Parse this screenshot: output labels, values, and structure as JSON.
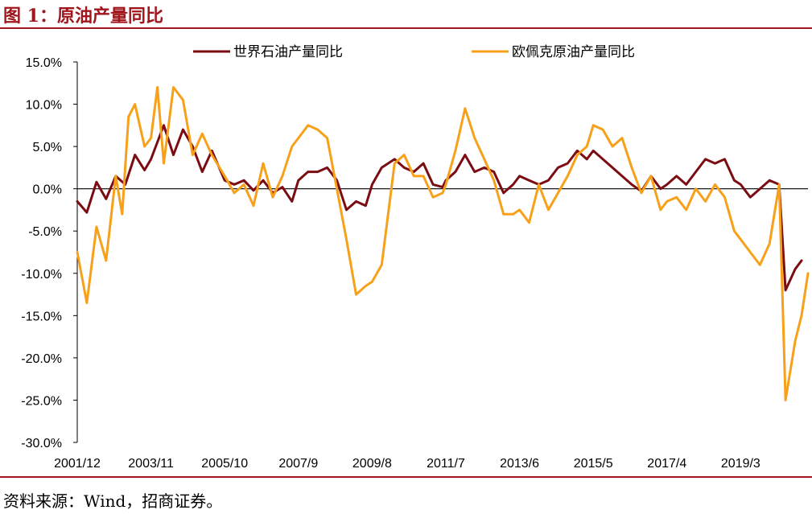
{
  "figure": {
    "title": "图 1：原油产量同比",
    "source": "资料来源：Wind，招商证券。"
  },
  "colors": {
    "world": "#7b0c12",
    "opec": "#f7a11a",
    "accent": "#a0161d"
  },
  "chart_data": {
    "type": "line",
    "title": "",
    "xlabel": "",
    "ylabel": "",
    "ylim": [
      -30,
      15
    ],
    "y_ticks": [
      15,
      10,
      5,
      0,
      -5,
      -10,
      -15,
      -20,
      -25,
      -30
    ],
    "y_tick_labels": [
      "15.0%",
      "10.0%",
      "5.0%",
      "0.0%",
      "-5.0%",
      "-10.0%",
      "-15.0%",
      "-20.0%",
      "-25.0%",
      "-30.0%"
    ],
    "x_tick_labels": [
      "2001/12",
      "2003/11",
      "2005/10",
      "2007/9",
      "2009/8",
      "2011/7",
      "2013/6",
      "2015/5",
      "2017/4",
      "2019/3"
    ],
    "legend": {
      "placement": "top"
    },
    "grid": false,
    "series": [
      {
        "name": "世界石油产量同比",
        "color": "#7b0c12",
        "points": [
          [
            "2001/12",
            -1.5
          ],
          [
            "2002/3",
            -2.8
          ],
          [
            "2002/6",
            0.8
          ],
          [
            "2002/9",
            -1.2
          ],
          [
            "2002/12",
            1.5
          ],
          [
            "2003/3",
            0.5
          ],
          [
            "2003/6",
            4.0
          ],
          [
            "2003/9",
            2.2
          ],
          [
            "2003/11",
            3.5
          ],
          [
            "2004/3",
            7.5
          ],
          [
            "2004/6",
            4.0
          ],
          [
            "2004/9",
            7.0
          ],
          [
            "2004/12",
            5.0
          ],
          [
            "2005/3",
            2.0
          ],
          [
            "2005/6",
            4.5
          ],
          [
            "2005/10",
            1.0
          ],
          [
            "2006/1",
            0.5
          ],
          [
            "2006/4",
            1.0
          ],
          [
            "2006/7",
            -0.2
          ],
          [
            "2006/10",
            1.0
          ],
          [
            "2007/1",
            -0.5
          ],
          [
            "2007/4",
            0.2
          ],
          [
            "2007/7",
            -1.5
          ],
          [
            "2007/9",
            1.0
          ],
          [
            "2007/12",
            2.0
          ],
          [
            "2008/3",
            2.0
          ],
          [
            "2008/6",
            2.5
          ],
          [
            "2008/9",
            1.0
          ],
          [
            "2008/12",
            -2.5
          ],
          [
            "2009/3",
            -1.5
          ],
          [
            "2009/6",
            -2.0
          ],
          [
            "2009/8",
            0.5
          ],
          [
            "2009/11",
            2.5
          ],
          [
            "2010/3",
            3.5
          ],
          [
            "2010/6",
            2.5
          ],
          [
            "2010/9",
            2.0
          ],
          [
            "2010/12",
            3.0
          ],
          [
            "2011/3",
            0.5
          ],
          [
            "2011/6",
            0.2
          ],
          [
            "2011/7",
            1.0
          ],
          [
            "2011/10",
            2.0
          ],
          [
            "2012/1",
            4.0
          ],
          [
            "2012/4",
            2.0
          ],
          [
            "2012/7",
            2.5
          ],
          [
            "2012/10",
            2.0
          ],
          [
            "2013/1",
            -0.5
          ],
          [
            "2013/4",
            0.5
          ],
          [
            "2013/6",
            1.5
          ],
          [
            "2013/9",
            1.0
          ],
          [
            "2013/12",
            0.5
          ],
          [
            "2014/3",
            1.0
          ],
          [
            "2014/6",
            2.5
          ],
          [
            "2014/9",
            3.0
          ],
          [
            "2014/12",
            4.5
          ],
          [
            "2015/3",
            3.5
          ],
          [
            "2015/5",
            4.5
          ],
          [
            "2015/8",
            3.5
          ],
          [
            "2015/11",
            2.5
          ],
          [
            "2016/2",
            1.5
          ],
          [
            "2016/5",
            0.5
          ],
          [
            "2016/8",
            -0.3
          ],
          [
            "2016/11",
            1.5
          ],
          [
            "2017/2",
            0.0
          ],
          [
            "2017/4",
            0.5
          ],
          [
            "2017/7",
            1.5
          ],
          [
            "2017/10",
            0.5
          ],
          [
            "2018/1",
            2.0
          ],
          [
            "2018/4",
            3.5
          ],
          [
            "2018/7",
            3.0
          ],
          [
            "2018/10",
            3.5
          ],
          [
            "2019/1",
            1.0
          ],
          [
            "2019/3",
            0.5
          ],
          [
            "2019/6",
            -1.0
          ],
          [
            "2019/9",
            0.0
          ],
          [
            "2019/12",
            1.0
          ],
          [
            "2020/3",
            0.5
          ],
          [
            "2020/5",
            -12.0
          ],
          [
            "2020/8",
            -9.5
          ],
          [
            "2020/10",
            -8.5
          ]
        ]
      },
      {
        "name": "欧佩克原油产量同比",
        "color": "#f7a11a",
        "points": [
          [
            "2001/12",
            -7.5
          ],
          [
            "2002/3",
            -13.5
          ],
          [
            "2002/6",
            -4.5
          ],
          [
            "2002/9",
            -8.5
          ],
          [
            "2002/12",
            1.5
          ],
          [
            "2003/2",
            -3.0
          ],
          [
            "2003/4",
            8.5
          ],
          [
            "2003/6",
            10.0
          ],
          [
            "2003/9",
            5.0
          ],
          [
            "2003/11",
            6.0
          ],
          [
            "2004/1",
            12.0
          ],
          [
            "2004/3",
            3.0
          ],
          [
            "2004/6",
            12.0
          ],
          [
            "2004/9",
            10.5
          ],
          [
            "2004/12",
            4.0
          ],
          [
            "2005/3",
            6.5
          ],
          [
            "2005/6",
            4.0
          ],
          [
            "2005/10",
            1.5
          ],
          [
            "2006/1",
            -0.5
          ],
          [
            "2006/4",
            0.5
          ],
          [
            "2006/7",
            -2.0
          ],
          [
            "2006/10",
            3.0
          ],
          [
            "2007/1",
            -1.0
          ],
          [
            "2007/4",
            1.5
          ],
          [
            "2007/7",
            5.0
          ],
          [
            "2007/9",
            6.0
          ],
          [
            "2007/12",
            7.5
          ],
          [
            "2008/3",
            7.0
          ],
          [
            "2008/6",
            6.0
          ],
          [
            "2008/9",
            0.0
          ],
          [
            "2008/12",
            -6.0
          ],
          [
            "2009/3",
            -12.5
          ],
          [
            "2009/6",
            -11.5
          ],
          [
            "2009/8",
            -11.0
          ],
          [
            "2009/11",
            -9.0
          ],
          [
            "2010/3",
            3.0
          ],
          [
            "2010/6",
            4.0
          ],
          [
            "2010/9",
            1.5
          ],
          [
            "2010/12",
            1.5
          ],
          [
            "2011/3",
            -1.0
          ],
          [
            "2011/6",
            -0.5
          ],
          [
            "2011/7",
            0.5
          ],
          [
            "2011/10",
            4.5
          ],
          [
            "2012/1",
            9.5
          ],
          [
            "2012/4",
            6.0
          ],
          [
            "2012/7",
            3.5
          ],
          [
            "2012/10",
            1.0
          ],
          [
            "2013/1",
            -3.0
          ],
          [
            "2013/4",
            -3.0
          ],
          [
            "2013/6",
            -2.5
          ],
          [
            "2013/9",
            -4.0
          ],
          [
            "2013/12",
            0.5
          ],
          [
            "2014/3",
            -2.5
          ],
          [
            "2014/6",
            -0.5
          ],
          [
            "2014/9",
            1.5
          ],
          [
            "2014/12",
            4.0
          ],
          [
            "2015/3",
            5.0
          ],
          [
            "2015/5",
            7.5
          ],
          [
            "2015/8",
            7.0
          ],
          [
            "2015/11",
            5.0
          ],
          [
            "2016/2",
            6.0
          ],
          [
            "2016/5",
            2.5
          ],
          [
            "2016/8",
            -0.5
          ],
          [
            "2016/11",
            1.5
          ],
          [
            "2017/2",
            -2.5
          ],
          [
            "2017/4",
            -1.5
          ],
          [
            "2017/7",
            -1.0
          ],
          [
            "2017/10",
            -2.5
          ],
          [
            "2018/1",
            0.0
          ],
          [
            "2018/4",
            -1.5
          ],
          [
            "2018/7",
            0.5
          ],
          [
            "2018/10",
            -1.0
          ],
          [
            "2019/1",
            -5.0
          ],
          [
            "2019/3",
            -6.0
          ],
          [
            "2019/6",
            -7.5
          ],
          [
            "2019/9",
            -9.0
          ],
          [
            "2019/12",
            -6.5
          ],
          [
            "2020/3",
            0.5
          ],
          [
            "2020/5",
            -25.0
          ],
          [
            "2020/8",
            -18.0
          ],
          [
            "2020/10",
            -15.0
          ],
          [
            "2020/12",
            -10.0
          ]
        ]
      }
    ]
  }
}
